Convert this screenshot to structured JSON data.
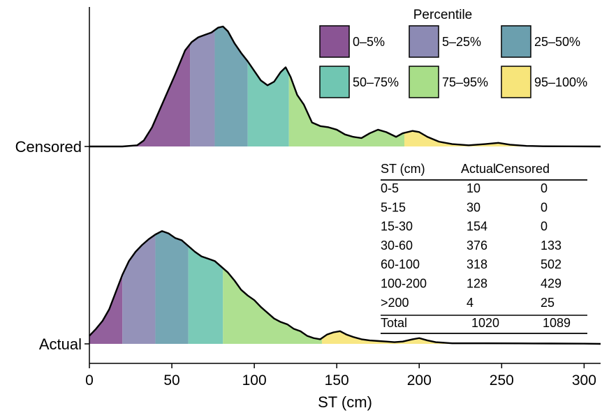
{
  "chart_data": {
    "type": "ridgeline",
    "xlabel": "ST (cm)",
    "xlim": [
      0,
      310
    ],
    "x_ticks": [
      0,
      50,
      100,
      150,
      200,
      250,
      300
    ],
    "x_tick_labels": [
      "0",
      "50",
      "100",
      "150",
      "200",
      "250",
      "300"
    ],
    "rows": [
      "Censored",
      "Actual"
    ],
    "legend": {
      "title": "Percentile",
      "position": "top-right",
      "entries": [
        {
          "label": "0–5%",
          "color": "#8a5494"
        },
        {
          "label": "5–25%",
          "color": "#8c8ab4"
        },
        {
          "label": "25–50%",
          "color": "#6b9fae"
        },
        {
          "label": "50–75%",
          "color": "#70c6b2"
        },
        {
          "label": "75–95%",
          "color": "#a8de88"
        },
        {
          "label": "95–100%",
          "color": "#f7e57a"
        }
      ]
    },
    "series": [
      {
        "name": "Censored",
        "percentile_breaks": [
          0,
          61,
          76,
          96,
          121,
          191,
          310
        ],
        "density": [
          [
            0,
            0
          ],
          [
            20,
            0
          ],
          [
            29,
            0.01
          ],
          [
            33,
            0.05
          ],
          [
            38,
            0.16
          ],
          [
            45,
            0.38
          ],
          [
            52,
            0.6
          ],
          [
            58,
            0.8
          ],
          [
            62,
            0.87
          ],
          [
            66,
            0.91
          ],
          [
            70,
            0.93
          ],
          [
            74,
            0.95
          ],
          [
            78,
            0.99
          ],
          [
            81,
            1.0
          ],
          [
            84,
            0.96
          ],
          [
            88,
            0.86
          ],
          [
            92,
            0.78
          ],
          [
            96,
            0.71
          ],
          [
            100,
            0.63
          ],
          [
            104,
            0.55
          ],
          [
            108,
            0.51
          ],
          [
            112,
            0.54
          ],
          [
            116,
            0.62
          ],
          [
            119,
            0.66
          ],
          [
            122,
            0.58
          ],
          [
            126,
            0.43
          ],
          [
            130,
            0.35
          ],
          [
            135,
            0.2
          ],
          [
            140,
            0.17
          ],
          [
            145,
            0.16
          ],
          [
            150,
            0.14
          ],
          [
            155,
            0.1
          ],
          [
            160,
            0.08
          ],
          [
            165,
            0.07
          ],
          [
            170,
            0.11
          ],
          [
            175,
            0.14
          ],
          [
            180,
            0.12
          ],
          [
            186,
            0.08
          ],
          [
            190,
            0.11
          ],
          [
            196,
            0.13
          ],
          [
            200,
            0.12
          ],
          [
            205,
            0.08
          ],
          [
            212,
            0.04
          ],
          [
            220,
            0.02
          ],
          [
            230,
            0.01
          ],
          [
            240,
            0.02
          ],
          [
            248,
            0.03
          ],
          [
            255,
            0.015
          ],
          [
            265,
            0.005
          ],
          [
            275,
            0.002
          ],
          [
            290,
            0.001
          ],
          [
            310,
            0
          ]
        ]
      },
      {
        "name": "Actual",
        "percentile_breaks": [
          0,
          20,
          40,
          60,
          81,
          141,
          310
        ],
        "density": [
          [
            0,
            0.07
          ],
          [
            4,
            0.13
          ],
          [
            8,
            0.2
          ],
          [
            12,
            0.3
          ],
          [
            16,
            0.45
          ],
          [
            20,
            0.6
          ],
          [
            24,
            0.72
          ],
          [
            28,
            0.8
          ],
          [
            32,
            0.86
          ],
          [
            36,
            0.91
          ],
          [
            40,
            0.95
          ],
          [
            44,
            0.98
          ],
          [
            48,
            0.96
          ],
          [
            52,
            0.92
          ],
          [
            56,
            0.9
          ],
          [
            60,
            0.85
          ],
          [
            64,
            0.8
          ],
          [
            68,
            0.76
          ],
          [
            72,
            0.74
          ],
          [
            76,
            0.72
          ],
          [
            80,
            0.67
          ],
          [
            84,
            0.62
          ],
          [
            88,
            0.55
          ],
          [
            92,
            0.47
          ],
          [
            96,
            0.42
          ],
          [
            100,
            0.38
          ],
          [
            104,
            0.32
          ],
          [
            108,
            0.27
          ],
          [
            112,
            0.22
          ],
          [
            116,
            0.19
          ],
          [
            120,
            0.17
          ],
          [
            124,
            0.13
          ],
          [
            128,
            0.11
          ],
          [
            132,
            0.07
          ],
          [
            136,
            0.05
          ],
          [
            140,
            0.04
          ],
          [
            144,
            0.08
          ],
          [
            148,
            0.1
          ],
          [
            152,
            0.11
          ],
          [
            156,
            0.08
          ],
          [
            160,
            0.06
          ],
          [
            165,
            0.04
          ],
          [
            170,
            0.03
          ],
          [
            175,
            0.025
          ],
          [
            180,
            0.02
          ],
          [
            185,
            0.015
          ],
          [
            190,
            0.02
          ],
          [
            196,
            0.04
          ],
          [
            200,
            0.05
          ],
          [
            205,
            0.03
          ],
          [
            210,
            0.015
          ],
          [
            220,
            0.005
          ],
          [
            240,
            0.005
          ],
          [
            260,
            0.004
          ],
          [
            280,
            0.003
          ],
          [
            300,
            0.002
          ],
          [
            310,
            0
          ]
        ]
      }
    ],
    "table": {
      "headers": [
        "ST (cm)",
        "Actual",
        "Censored"
      ],
      "rows": [
        [
          "0-5",
          "10",
          "0"
        ],
        [
          "5-15",
          "30",
          "0"
        ],
        [
          "15-30",
          "154",
          "0"
        ],
        [
          "30-60",
          "376",
          "133"
        ],
        [
          "60-100",
          "318",
          "502"
        ],
        [
          "100-200",
          "128",
          "429"
        ],
        [
          ">200",
          "4",
          "25"
        ]
      ],
      "total": [
        "Total",
        "1020",
        "1089"
      ]
    }
  }
}
